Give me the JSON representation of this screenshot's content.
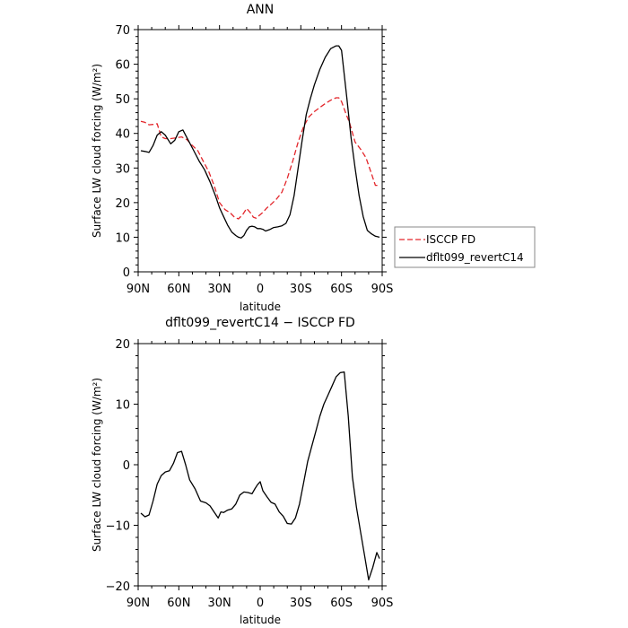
{
  "colors": {
    "model": "#000000",
    "obs": "#e3262b",
    "frame": "#000000",
    "legend_border": "#888888"
  },
  "chart_data": [
    {
      "type": "line",
      "title": "ANN",
      "xlabel": "latitude",
      "ylabel": "Surface LW cloud forcing (W/m²)",
      "xlim": [
        90,
        -90
      ],
      "ylim": [
        0,
        70
      ],
      "x_ticks": [
        90,
        60,
        30,
        0,
        -30,
        -60,
        -90
      ],
      "x_tick_labels": [
        "90N",
        "60N",
        "30N",
        "0",
        "30S",
        "60S",
        "90S"
      ],
      "y_ticks": [
        0,
        10,
        20,
        30,
        40,
        50,
        60,
        70
      ],
      "y_tick_labels": [
        "0",
        "10",
        "20",
        "30",
        "40",
        "50",
        "60",
        "70"
      ],
      "legend_position": "right",
      "series": [
        {
          "name": "ISCCP FD",
          "style": "dashed",
          "color": "#e3262b",
          "x": [
            88,
            85,
            82,
            79,
            76,
            73,
            70,
            66,
            62,
            58,
            54,
            50,
            46,
            42,
            38,
            34,
            30,
            26,
            22,
            19,
            16,
            13,
            10,
            7,
            5,
            3,
            1,
            -2,
            -5,
            -8,
            -12,
            -16,
            -20,
            -24,
            -28,
            -32,
            -36,
            -40,
            -44,
            -48,
            -52,
            -56,
            -58,
            -60,
            -63,
            -66,
            -70,
            -74,
            -78,
            -82,
            -85,
            -88
          ],
          "y": [
            43.5,
            43.2,
            42.5,
            42.6,
            42.8,
            39.0,
            38.5,
            38.5,
            38.7,
            39.0,
            38.2,
            36.5,
            35.0,
            32.0,
            29.0,
            25.0,
            20.0,
            18.0,
            17.0,
            15.8,
            15.3,
            16.5,
            18.3,
            17.0,
            15.8,
            15.5,
            16.2,
            17.2,
            18.5,
            19.5,
            21.0,
            23.0,
            27.0,
            32.0,
            37.5,
            42.0,
            44.8,
            46.3,
            47.5,
            48.6,
            49.6,
            50.3,
            50.3,
            49.2,
            46.0,
            43.0,
            37.5,
            35.5,
            33.0,
            28.5,
            25.0,
            25.0
          ]
        },
        {
          "name": "dflt099_revertC14",
          "style": "solid",
          "color": "#000000",
          "x": [
            88,
            85,
            82,
            79,
            76,
            73,
            70,
            66,
            63,
            60,
            57,
            53,
            49,
            45,
            41,
            37,
            33,
            30,
            27,
            24,
            21,
            18,
            16,
            14,
            12,
            10,
            8,
            6,
            4,
            2,
            0,
            -2,
            -4,
            -7,
            -10,
            -13,
            -16,
            -19,
            -22,
            -25,
            -28,
            -31,
            -34,
            -37,
            -40,
            -44,
            -48,
            -52,
            -56,
            -58,
            -60,
            -62,
            -64,
            -67,
            -70,
            -73,
            -76,
            -79,
            -82,
            -85,
            -88
          ],
          "y": [
            35.0,
            34.8,
            34.5,
            36.5,
            39.5,
            40.5,
            39.5,
            37.0,
            38.0,
            40.5,
            41.0,
            38.0,
            35.0,
            32.0,
            29.5,
            26.0,
            22.0,
            18.5,
            16.0,
            13.5,
            11.5,
            10.5,
            10.0,
            9.8,
            10.5,
            12.0,
            13.0,
            13.2,
            13.0,
            12.5,
            12.5,
            12.3,
            11.8,
            12.2,
            12.8,
            13.0,
            13.3,
            14.0,
            16.5,
            22.0,
            30.0,
            38.0,
            45.5,
            50.0,
            54.0,
            58.5,
            62.0,
            64.5,
            65.3,
            65.3,
            64.0,
            57.0,
            50.0,
            39.0,
            30.0,
            22.0,
            16.0,
            12.0,
            11.0,
            10.3,
            10.0
          ]
        }
      ]
    },
    {
      "type": "line",
      "title": "dflt099_revertC14 − ISCCP FD",
      "xlabel": "latitude",
      "ylabel": "Surface LW cloud forcing (W/m²)",
      "xlim": [
        90,
        -90
      ],
      "ylim": [
        -20,
        20
      ],
      "x_ticks": [
        90,
        60,
        30,
        0,
        -30,
        -60,
        -90
      ],
      "x_tick_labels": [
        "90N",
        "60N",
        "30N",
        "0",
        "30S",
        "60S",
        "90S"
      ],
      "y_ticks": [
        -20,
        -10,
        0,
        10,
        20
      ],
      "y_tick_labels": [
        "−20",
        "−10",
        "0",
        "10",
        "20"
      ],
      "series": [
        {
          "color": "#000000",
          "style": "solid",
          "x": [
            88,
            85,
            82,
            79,
            76,
            73,
            70,
            67,
            64,
            61,
            58,
            55,
            52,
            48,
            44,
            40,
            37,
            34,
            31,
            29,
            27,
            24,
            21,
            18,
            15,
            12,
            9,
            6,
            4,
            2,
            0,
            -2,
            -5,
            -8,
            -11,
            -14,
            -17,
            -20,
            -23,
            -26,
            -29,
            -32,
            -35,
            -38,
            -41,
            -44,
            -47,
            -50,
            -53,
            -56,
            -59,
            -62,
            -65,
            -68,
            -71,
            -74,
            -77,
            -80,
            -83,
            -86,
            -88
          ],
          "y": [
            -8.0,
            -8.6,
            -8.3,
            -6.0,
            -3.2,
            -1.8,
            -1.2,
            -1.0,
            0.2,
            2.0,
            2.2,
            0.0,
            -2.5,
            -4.0,
            -6.0,
            -6.3,
            -6.8,
            -7.8,
            -8.8,
            -7.8,
            -7.9,
            -7.5,
            -7.3,
            -6.5,
            -5.0,
            -4.5,
            -4.6,
            -4.8,
            -4.0,
            -3.3,
            -2.8,
            -4.3,
            -5.3,
            -6.2,
            -6.5,
            -7.8,
            -8.5,
            -9.7,
            -9.8,
            -8.8,
            -6.5,
            -3.0,
            0.5,
            3.0,
            5.5,
            8.0,
            10.0,
            11.5,
            13.0,
            14.5,
            15.2,
            15.3,
            8.0,
            -2.0,
            -7.0,
            -11.0,
            -15.0,
            -19.0,
            -17.0,
            -14.5,
            -15.5
          ]
        }
      ]
    }
  ]
}
